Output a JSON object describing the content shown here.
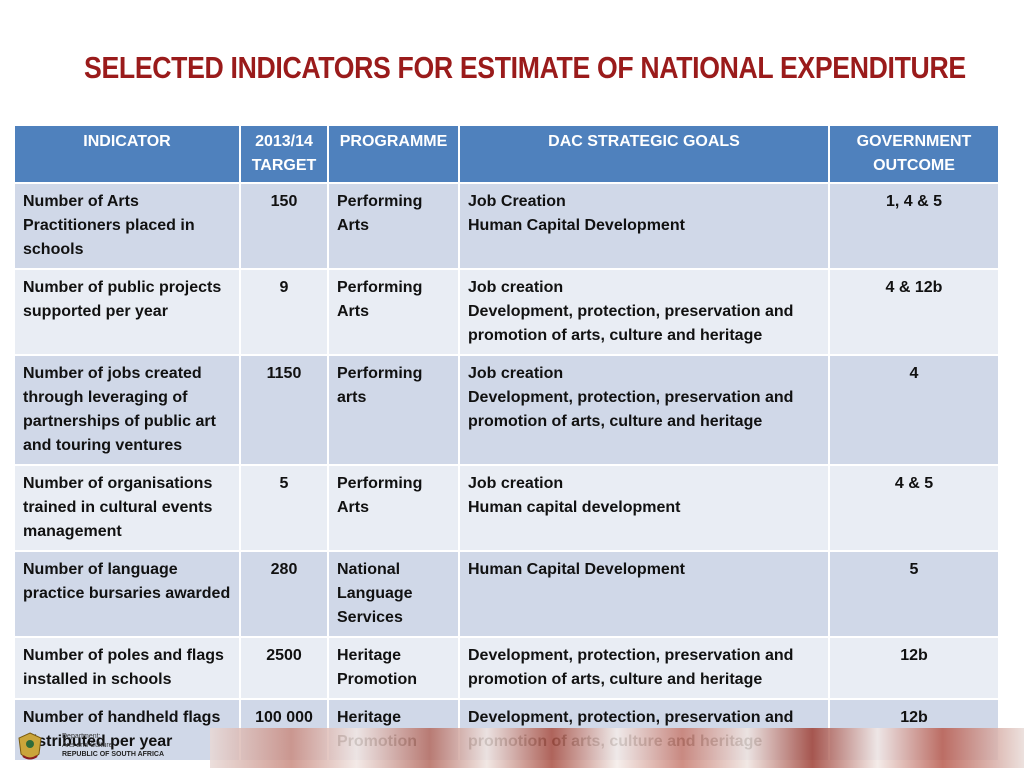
{
  "title": "SELECTED INDICATORS FOR ESTIMATE OF NATIONAL EXPENDITURE",
  "table": {
    "headers": [
      "INDICATOR",
      "2013/14 TARGET",
      "PROGRAMME",
      "DAC STRATEGIC GOALS",
      "GOVERNMENT OUTCOME"
    ],
    "rows": [
      {
        "indicator": "Number of Arts Practitioners placed in schools",
        "target": "150",
        "programme": "Performing Arts",
        "goals": [
          "Job Creation",
          "Human Capital Development"
        ],
        "outcome": "1, 4 & 5"
      },
      {
        "indicator": "Number of public projects supported per year",
        "target": "9",
        "programme": "Performing Arts",
        "goals": [
          "Job creation",
          "Development, protection, preservation and promotion of arts, culture and heritage"
        ],
        "outcome": "4 & 12b"
      },
      {
        "indicator": "Number of jobs created through leveraging of partnerships of public art and touring ventures",
        "target": "1150",
        "programme": "Performing arts",
        "goals": [
          "Job creation",
          "Development, protection, preservation and promotion of arts, culture and heritage"
        ],
        "outcome": "4"
      },
      {
        "indicator": "Number of organisations trained in cultural events management",
        "target": "5",
        "programme": "Performing Arts",
        "goals": [
          "Job creation",
          "Human capital development"
        ],
        "outcome": "4 & 5"
      },
      {
        "indicator": "Number of language practice bursaries awarded",
        "target": "280",
        "programme": "National Language Services",
        "goals": [
          "Human Capital Development"
        ],
        "outcome": "5"
      },
      {
        "indicator": "Number of poles and flags installed in schools",
        "target": "2500",
        "programme": "Heritage Promotion",
        "goals": [
          "Development, protection, preservation and promotion of arts, culture and heritage"
        ],
        "outcome": "12b"
      },
      {
        "indicator": "Number of handheld flags distributed per year",
        "target": "100 000",
        "programme": "Heritage Promotion",
        "goals": [
          "Development, protection, preservation and promotion of arts, culture and heritage"
        ],
        "outcome": "12b"
      }
    ]
  },
  "footer": {
    "dept_line1": "Department:",
    "dept_line2": "Arts and Culture",
    "dept_line3": "REPUBLIC OF SOUTH AFRICA"
  },
  "colors": {
    "title": "#9a1b1b",
    "header_bg": "#4f81bd",
    "row_odd": "#d0d8e8",
    "row_even": "#e9edf4"
  }
}
